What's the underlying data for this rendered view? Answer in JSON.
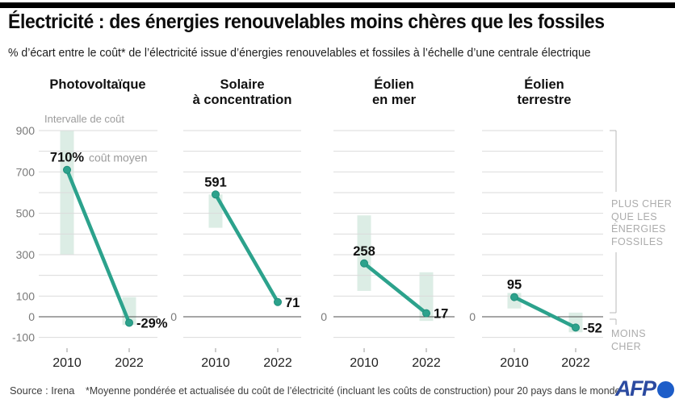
{
  "header": {
    "title": "Électricité : des énergies renouvelables moins chères que les fossiles",
    "subtitle": "% d’écart entre le coût* de l’électricité issue d’énergies renouvelables et fossiles à l’échelle d’une centrale électrique"
  },
  "chart_data": {
    "type": "line",
    "x_categories": [
      "2010",
      "2022"
    ],
    "unit": "%",
    "ylim": [
      -100,
      900
    ],
    "gridline_step": 100,
    "y_ticks": [
      900,
      700,
      500,
      300,
      100,
      0,
      -100
    ],
    "panels": [
      {
        "title_lines": [
          "Photovoltaïque"
        ],
        "values": [
          710,
          -29
        ],
        "labels": [
          "710%",
          "-29%"
        ],
        "intervals": [
          [
            300,
            900
          ],
          [
            -40,
            95
          ]
        ]
      },
      {
        "title_lines": [
          "Solaire",
          "à concentration"
        ],
        "values": [
          591,
          71
        ],
        "labels": [
          "591",
          "71"
        ],
        "intervals": [
          [
            430,
            591
          ],
          null
        ]
      },
      {
        "title_lines": [
          "Éolien",
          "en mer"
        ],
        "values": [
          258,
          17
        ],
        "labels": [
          "258",
          "17"
        ],
        "intervals": [
          [
            125,
            490
          ],
          [
            -20,
            215
          ]
        ]
      },
      {
        "title_lines": [
          "Éolien",
          "terrestre"
        ],
        "values": [
          95,
          -52
        ],
        "labels": [
          "95",
          "-52"
        ],
        "intervals": [
          [
            40,
            115
          ],
          [
            -75,
            20
          ]
        ]
      }
    ],
    "annotations": {
      "interval_label": "Intervalle de coût",
      "mean_label": "coût moyen"
    },
    "right_labels": {
      "above_lines": [
        "PLUS CHER",
        "QUE LES",
        "ÉNERGIES",
        "FOSSILES"
      ],
      "below": "MOINS CHER"
    }
  },
  "colors": {
    "accent": "#2CA28C",
    "accent_dark": "#1F8E7A",
    "band": "#DCEDE5",
    "grid": "#DBDBDB",
    "axis": "#4D4D4D",
    "muted": "#9B9B9B",
    "tick_text": "#7A7A7A",
    "year_text": "#222222",
    "value_text": "#111111",
    "bracket": "#B9B9B9"
  },
  "footer": {
    "source": "Source : Irena",
    "note": "*Moyenne pondérée et actualisée du coût de l’électricité (incluant les coûts de construction) pour 20 pays dans le monde",
    "logo": "AFP"
  }
}
